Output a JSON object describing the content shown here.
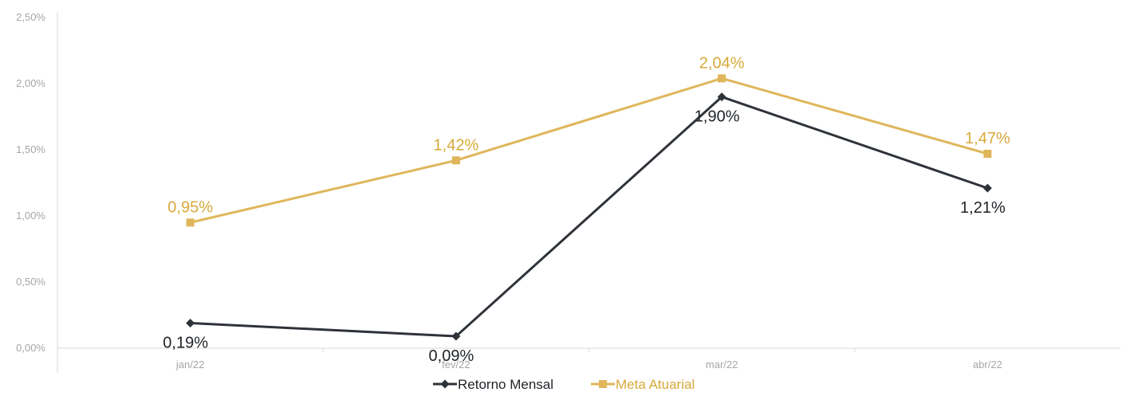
{
  "chart_data": {
    "type": "line",
    "categories": [
      "jan/22",
      "fev/22",
      "mar/22",
      "abr/22"
    ],
    "y_ticks": [
      "0,00%",
      "0,50%",
      "1,00%",
      "1,50%",
      "2,00%",
      "2,50%"
    ],
    "ylim": [
      0,
      2.5
    ],
    "grid": false,
    "legend_position": "bottom",
    "series": [
      {
        "name": "Retorno Mensal",
        "values": [
          0.19,
          0.09,
          1.9,
          1.21
        ],
        "labels": [
          "0,19%",
          "0,09%",
          "1,90%",
          "1,21%"
        ],
        "color": "#2e3239",
        "label_color": "#1f2328",
        "marker": "diamond"
      },
      {
        "name": "Meta Atuarial",
        "values": [
          0.95,
          1.42,
          2.04,
          1.47
        ],
        "labels": [
          "0,95%",
          "1,42%",
          "2,04%",
          "1,47%"
        ],
        "color": "#dfb65a",
        "label_color": "#d8a93a",
        "marker": "square"
      }
    ]
  }
}
